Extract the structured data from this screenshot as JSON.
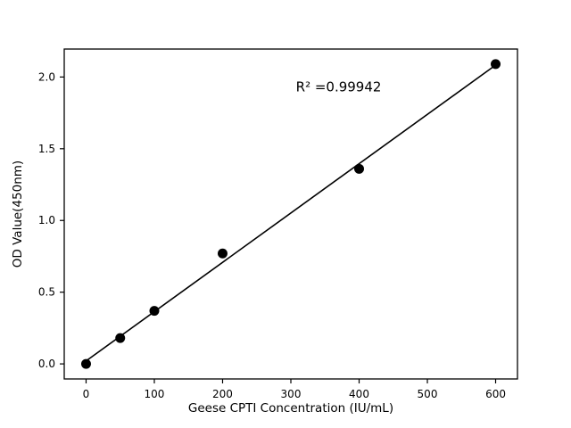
{
  "chart_data": {
    "type": "scatter",
    "title": "",
    "xlabel": "Geese CPTI Concentration (IU/mL)",
    "ylabel": "OD Value(450nm)",
    "x": [
      0,
      50,
      100,
      200,
      400,
      600
    ],
    "y": [
      0.0,
      0.18,
      0.37,
      0.77,
      1.36,
      2.09
    ],
    "fit_line": {
      "x": [
        -6,
        602
      ],
      "y": [
        0.0,
        2.09
      ]
    },
    "annotation": {
      "text": "R² =0.99942",
      "x": 370,
      "y": 1.9
    },
    "xlim": [
      -32,
      632
    ],
    "ylim": [
      -0.105,
      2.195
    ],
    "xticks": [
      0,
      100,
      200,
      300,
      400,
      500,
      600
    ],
    "xtick_labels": [
      "0",
      "100",
      "200",
      "300",
      "400",
      "500",
      "600"
    ],
    "yticks": [
      0.0,
      0.5,
      1.0,
      1.5,
      2.0
    ],
    "ytick_labels": [
      "0.0",
      "0.5",
      "1.0",
      "1.5",
      "2.0"
    ],
    "grid": false,
    "legend": null,
    "marker_color": "#000000",
    "line_color": "#000000",
    "axis_color": "#000000",
    "background": "#ffffff"
  }
}
